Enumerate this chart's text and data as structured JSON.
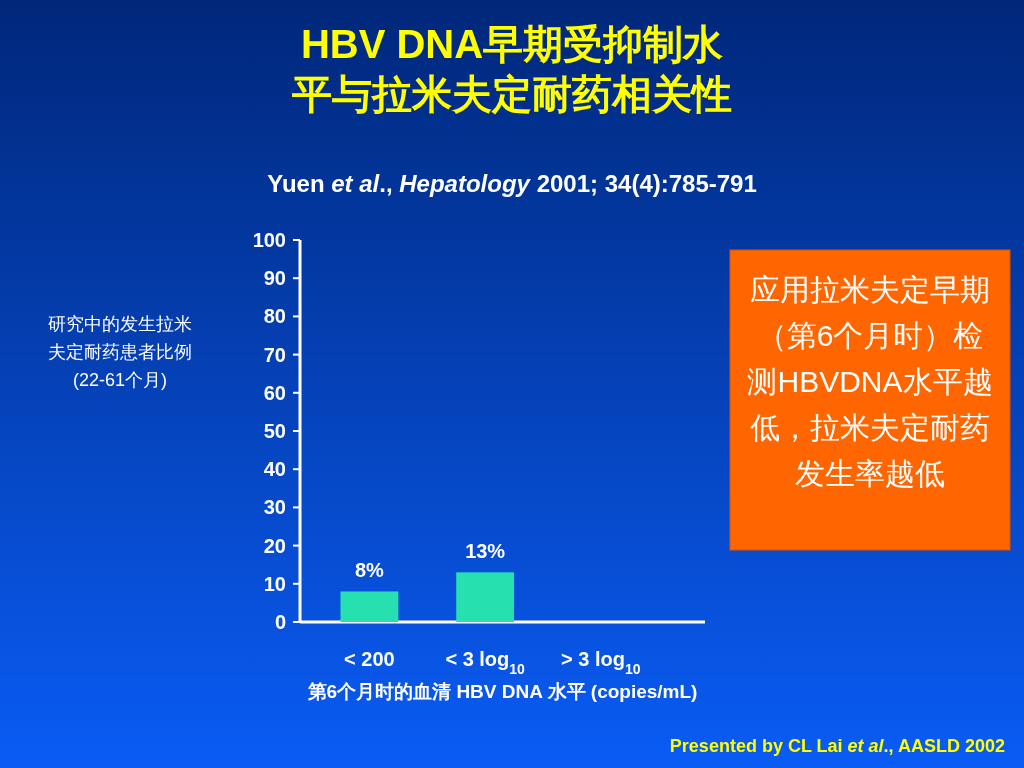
{
  "chart_data": {
    "type": "bar",
    "title": "HBV DNA早期受抑制水平与拉米夫定耐药相关性",
    "subtitle": "Yuen *et al*., *Hepatology*  2001; 34(4):785-791",
    "ylabel": "研究中的发生拉米夫定耐药患者比例 (22-61个月)",
    "xlabel": "第6个月时的血清 HBV DNA 水平 (copies/mL)",
    "categories": [
      "< 200",
      "< 3 log$_{10}$",
      "> 3 log$_{10}$"
    ],
    "values": [
      8,
      13,
      null
    ],
    "value_labels": [
      "8%",
      "13%",
      null
    ],
    "color": "#26e0b0",
    "ylim": [
      0,
      100
    ],
    "yticks": [
      0,
      10,
      20,
      30,
      40,
      50,
      60,
      70,
      80,
      90,
      100
    ],
    "grid": false,
    "annotations": [
      "应用拉米夫定早期（第6个月时）检测HBVDNA水平越低，拉米夫定耐药发生率越低",
      "Presented by CL Lai *et al*., AASLD 2002"
    ]
  }
}
